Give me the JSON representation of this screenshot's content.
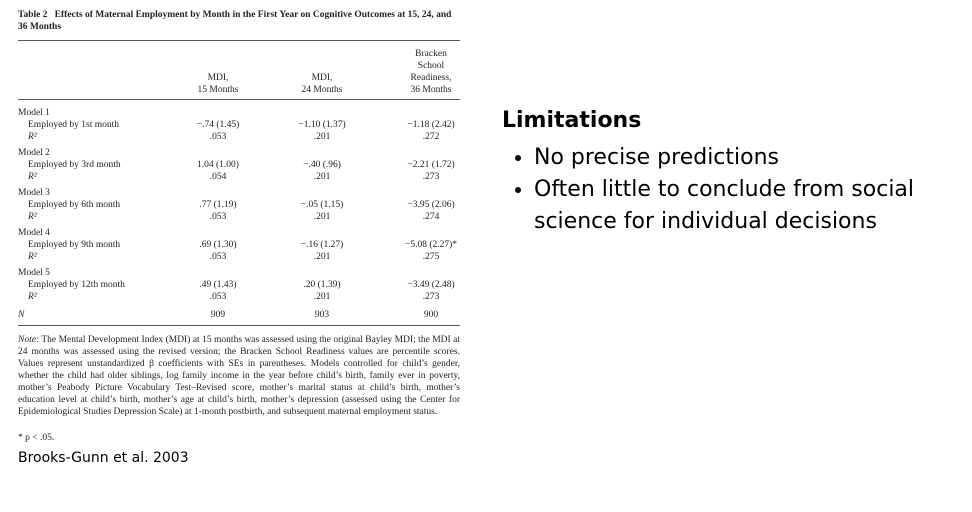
{
  "table": {
    "label": "Table 2",
    "title": "Effects of Maternal Employment by Month in the First Year on Cognitive Outcomes at 15, 24, and 36 Months",
    "headers": [
      [
        "MDI,",
        "15 Months"
      ],
      [
        "MDI,",
        "24 Months"
      ],
      [
        "Bracken",
        "School",
        "Readiness,",
        "36 Months"
      ]
    ],
    "models": [
      {
        "name": "Model 1",
        "row_label": "Employed by 1st month",
        "values": [
          "−.74 (1.45)",
          "−1.10 (1.37)",
          "−1.18 (2.42)"
        ],
        "r2_label": "R²",
        "r2": [
          ".053",
          ".201",
          ".272"
        ]
      },
      {
        "name": "Model 2",
        "row_label": "Employed by 3rd month",
        "values": [
          "1.04 (1.00)",
          "−.40 (.96)",
          "−2.21 (1.72)"
        ],
        "r2_label": "R²",
        "r2": [
          ".054",
          ".201",
          ".273"
        ]
      },
      {
        "name": "Model 3",
        "row_label": "Employed by 6th month",
        "values": [
          ".77 (1.19)",
          "−.05 (1.15)",
          "−3.95 (2.06)"
        ],
        "r2_label": "R²",
        "r2": [
          ".053",
          ".201",
          ".274"
        ]
      },
      {
        "name": "Model 4",
        "row_label": "Employed by 9th month",
        "values": [
          ".69 (1.30)",
          "−.16 (1.27)",
          "−5.08 (2.27)*"
        ],
        "r2_label": "R²",
        "r2": [
          ".053",
          ".201",
          ".275"
        ]
      },
      {
        "name": "Model 5",
        "row_label": "Employed by 12th month",
        "values": [
          ".49 (1.43)",
          ".20 (1.39)",
          "−3.49 (2.48)"
        ],
        "r2_label": "R²",
        "r2": [
          ".053",
          ".201",
          ".273"
        ]
      }
    ],
    "n_label": "N",
    "n": [
      "909",
      "903",
      "900"
    ],
    "note_label": "Note:",
    "note": "The Mental Development Index (MDI) at 15 months was assessed using the original Bayley MDI; the MDI at 24 months was assessed using the revised version; the Bracken School Readiness values are percentile scores. Values represent unstandardized β coefficients with SEs in parentheses. Models controlled for child’s gender, whether the child had older siblings, log family income in the year before child’s birth, family ever in poverty, mother’s Peabody Picture Vocabulary Test–Revised score, mother’s marital status at child’s birth, mother’s education level at child’s birth, mother’s age at child’s birth, mother’s depression (assessed using the Center for Epidemiological Studies Depression Scale) at 1-month postbirth, and subsequent maternal employment status.",
    "footnote": "* p < .05."
  },
  "source": "Brooks-Gunn et al. 2003",
  "limitations": {
    "title": "Limitations",
    "bullets": [
      "No precise predictions",
      "Often little to conclude from social science for individual decisions"
    ]
  }
}
